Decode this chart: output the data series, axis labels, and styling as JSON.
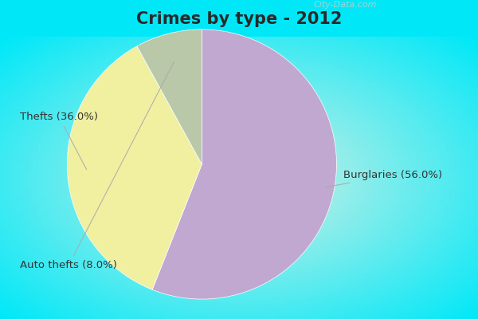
{
  "title": "Crimes by type - 2012",
  "slices": [
    {
      "label": "Burglaries",
      "pct": 56.0,
      "color": "#c0a8d0"
    },
    {
      "label": "Thefts",
      "pct": 36.0,
      "color": "#f0f0a0"
    },
    {
      "label": "Auto thefts",
      "pct": 8.0,
      "color": "#b8c8a8"
    }
  ],
  "background_cyan": "#00e8f8",
  "background_inner": "#d8f0e4",
  "title_fontsize": 15,
  "label_fontsize": 9.5,
  "watermark": "City-Data.com",
  "start_angle": 90,
  "title_color": "#2a2a2a",
  "label_color": "#333333",
  "title_bar_height": 0.115
}
